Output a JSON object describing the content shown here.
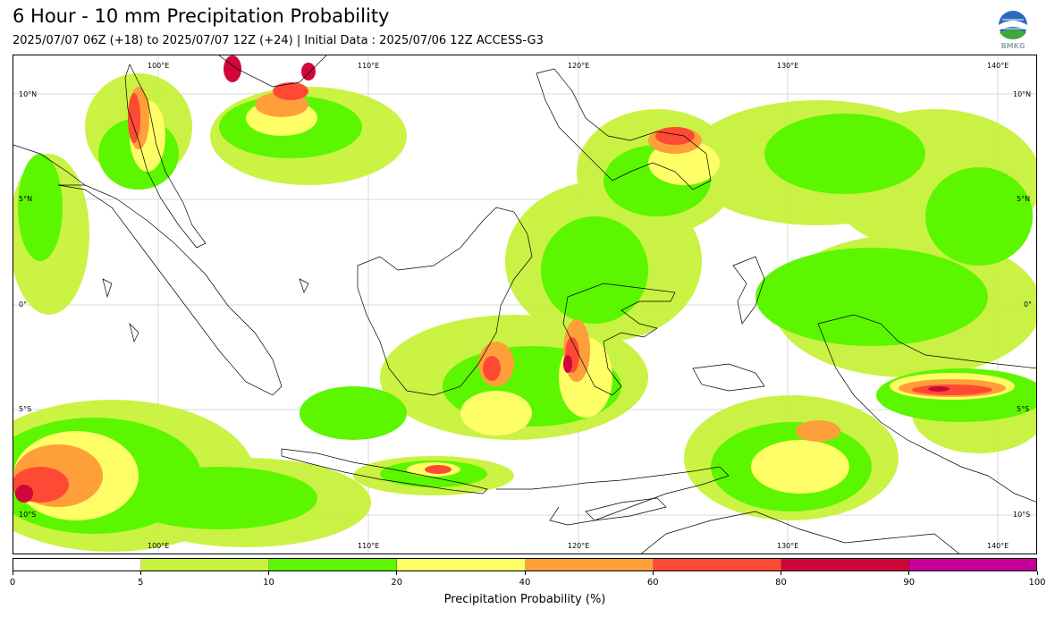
{
  "title": "6 Hour - 10 mm Precipitation Probability",
  "subtitle": "2025/07/07 06Z (+18) to 2025/07/07 12Z (+24) | Initial Data : 2025/07/06 12Z ACCESS-G3",
  "logo": {
    "text": "BMKG",
    "icon": "bmkg-globe-logo"
  },
  "map": {
    "lon_ticks": [
      "100°E",
      "110°E",
      "120°E",
      "130°E",
      "140°E"
    ],
    "lat_ticks": [
      "10°N",
      "5°N",
      "0°",
      "5°S",
      "10°S"
    ]
  },
  "colorbar": {
    "colors": [
      "#ffffff",
      "#c8f23a",
      "#5cf600",
      "#fefe66",
      "#ff9f3a",
      "#fe4a34",
      "#d0063a",
      "#c8009a"
    ],
    "ticks": [
      "0",
      "5",
      "10",
      "20",
      "40",
      "60",
      "80",
      "90",
      "100"
    ],
    "label": "Precipitation Probability (%)"
  }
}
